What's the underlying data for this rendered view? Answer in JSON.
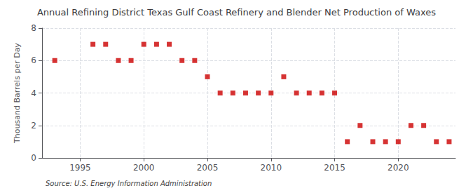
{
  "chart_data": {
    "type": "scatter",
    "title": "Annual Refining District Texas Gulf Coast Refinery and Blender Net Production of Waxes",
    "ylabel": "Thousand Barrels per Day",
    "source": "Source: U.S. Energy Information Administration",
    "x": [
      1993,
      1996,
      1997,
      1998,
      1999,
      2000,
      2001,
      2002,
      2003,
      2004,
      2005,
      2006,
      2007,
      2008,
      2009,
      2010,
      2011,
      2012,
      2013,
      2014,
      2015,
      2016,
      2017,
      2018,
      2019,
      2020,
      2021,
      2022,
      2023,
      2024
    ],
    "values": [
      6,
      7,
      7,
      6,
      6,
      7,
      7,
      7,
      6,
      6,
      5,
      4,
      4,
      4,
      4,
      4,
      5,
      4,
      4,
      4,
      4,
      1,
      2,
      1,
      1,
      1,
      2,
      2,
      1,
      1
    ],
    "color": "#cc0000",
    "marker": "square",
    "xlim": [
      1992,
      2024.5
    ],
    "xticks": [
      1995,
      2000,
      2005,
      2010,
      2015,
      2020
    ],
    "ylim": [
      0,
      8
    ],
    "yticks": [
      0,
      2,
      4,
      6,
      8
    ],
    "grid": true
  }
}
